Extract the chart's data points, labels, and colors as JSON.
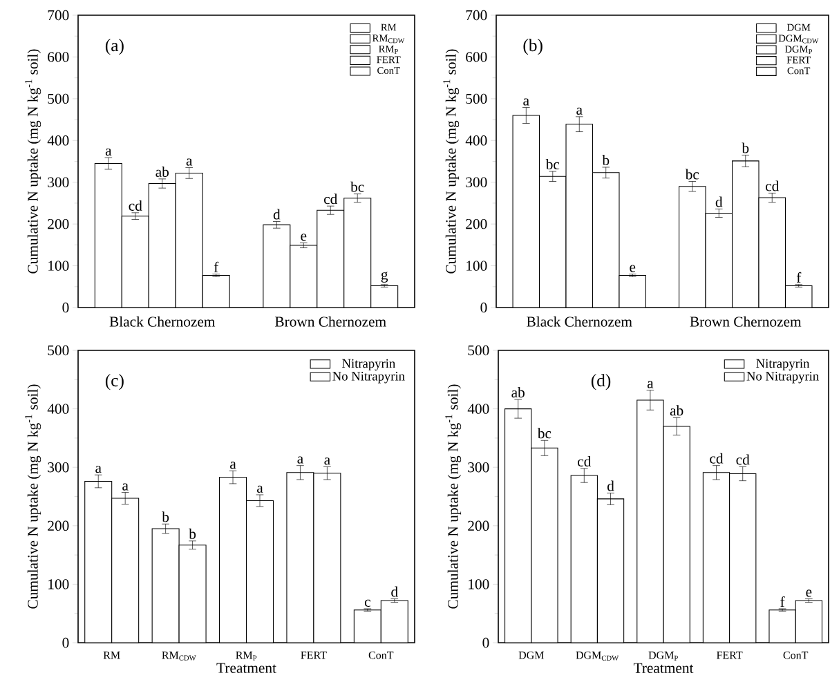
{
  "chart_data": [
    {
      "type": "bar",
      "annotations": [
        "(a)"
      ],
      "ylabel": "Cumulative N uptake (mg N kg$^{-1}$ soil)",
      "categories": [
        "Black Chernozem",
        "Brown Chernozem"
      ],
      "ylim": [
        0,
        700
      ],
      "yticks": [
        0,
        100,
        200,
        300,
        400,
        500,
        600,
        700
      ],
      "legend": "top right",
      "series": [
        {
          "name": "RM",
          "color": "#000000",
          "values": [
            345,
            198
          ],
          "errors": [
            14,
            8
          ],
          "value_labels": [
            "a",
            "d"
          ]
        },
        {
          "name": "RM$_{CDW}$",
          "color": "#000000",
          "values": [
            219,
            149
          ],
          "errors": [
            8,
            6
          ],
          "value_labels": [
            "cd",
            "e"
          ]
        },
        {
          "name": "RM$_{P}$",
          "color": "#000000",
          "values": [
            297,
            233
          ],
          "errors": [
            11,
            10
          ],
          "value_labels": [
            "ab",
            "cd"
          ]
        },
        {
          "name": "FERT",
          "color": "#000000",
          "values": [
            322,
            262
          ],
          "errors": [
            13,
            10
          ],
          "value_labels": [
            "a",
            "bc"
          ]
        },
        {
          "name": "ConT",
          "color": "#000000",
          "values": [
            77,
            52
          ],
          "errors": [
            3,
            3
          ],
          "value_labels": [
            "f",
            "g"
          ]
        }
      ]
    },
    {
      "type": "bar",
      "annotations": [
        "(b)"
      ],
      "ylabel": "Cumulative N uptake (mg N kg$^{-1}$ soil)",
      "categories": [
        "Black Chernozem",
        "Brown Chernozem"
      ],
      "ylim": [
        0,
        700
      ],
      "yticks": [
        0,
        100,
        200,
        300,
        400,
        500,
        600,
        700
      ],
      "legend": "top right",
      "series": [
        {
          "name": "DGM",
          "color": "#000000",
          "values": [
            460,
            290
          ],
          "errors": [
            19,
            12
          ],
          "value_labels": [
            "a",
            "bc"
          ]
        },
        {
          "name": "DGM$_{CDW}$",
          "color": "#000000",
          "values": [
            314,
            226
          ],
          "errors": [
            12,
            10
          ],
          "value_labels": [
            "bc",
            "d"
          ]
        },
        {
          "name": "DGM$_{P}$",
          "color": "#000000",
          "values": [
            439,
            351
          ],
          "errors": [
            18,
            14
          ],
          "value_labels": [
            "a",
            "b"
          ]
        },
        {
          "name": "FERT",
          "color": "#000000",
          "values": [
            323,
            263
          ],
          "errors": [
            13,
            11
          ],
          "value_labels": [
            "b",
            "cd"
          ]
        },
        {
          "name": "ConT",
          "color": "#000000",
          "values": [
            77,
            52
          ],
          "errors": [
            3,
            3
          ],
          "value_labels": [
            "e",
            "f"
          ]
        }
      ]
    },
    {
      "type": "bar",
      "annotations": [
        "(c)"
      ],
      "xlabel": "Treatment",
      "ylabel": "Cumulative N uptake (mg N kg$^{-1}$ soil)",
      "categories": [
        "RM",
        "RM$_{CDW}$",
        "RM$_{P}$",
        "FERT",
        "ConT"
      ],
      "ylim": [
        0,
        500
      ],
      "yticks": [
        0,
        100,
        200,
        300,
        400,
        500
      ],
      "legend": "top right",
      "series": [
        {
          "name": "Nitrapyrin",
          "color": "#000000",
          "values": [
            276,
            195,
            283,
            291,
            56
          ],
          "errors": [
            11,
            8,
            11,
            12,
            2
          ],
          "value_labels": [
            "a",
            "b",
            "a",
            "a",
            "c"
          ]
        },
        {
          "name": "No Nitrapyrin",
          "color": "#000000",
          "values": [
            247,
            167,
            243,
            290,
            72
          ],
          "errors": [
            10,
            7,
            10,
            11,
            3
          ],
          "value_labels": [
            "a",
            "b",
            "a",
            "a",
            "d"
          ]
        }
      ]
    },
    {
      "type": "bar",
      "annotations": [
        "(d)"
      ],
      "xlabel": "Treatment",
      "ylabel": "Cumulative N uptake (mg N kg$^{-1}$ soil)",
      "categories": [
        "DGM",
        "DGM$_{CDW}$",
        "DGM$_{P}$",
        "FERT",
        "ConT"
      ],
      "ylim": [
        0,
        500
      ],
      "yticks": [
        0,
        100,
        200,
        300,
        400,
        500
      ],
      "legend": "top right",
      "series": [
        {
          "name": "Nitrapyrin",
          "color": "#000000",
          "values": [
            400,
            286,
            415,
            291,
            56
          ],
          "errors": [
            16,
            12,
            17,
            12,
            2
          ],
          "value_labels": [
            "ab",
            "cd",
            "a",
            "cd",
            "f"
          ]
        },
        {
          "name": "No Nitrapyrin",
          "color": "#000000",
          "values": [
            333,
            246,
            370,
            289,
            72
          ],
          "errors": [
            13,
            10,
            15,
            12,
            3
          ],
          "value_labels": [
            "bc",
            "d",
            "ab",
            "cd",
            "e"
          ]
        }
      ]
    }
  ]
}
